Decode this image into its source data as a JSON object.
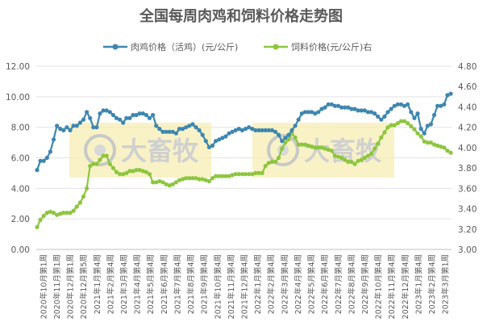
{
  "chart_data": {
    "type": "line",
    "title": "全国每周肉鸡和饲料价格走势图",
    "xlabel": "",
    "ylabel": "",
    "y_left": {
      "min": 0,
      "max": 12,
      "ticks": [
        "0.00",
        "2.00",
        "4.00",
        "6.00",
        "8.00",
        "10.00",
        "12.00"
      ]
    },
    "y_right": {
      "min": 3.0,
      "max": 4.8,
      "ticks": [
        "3.00",
        "3.20",
        "3.40",
        "3.60",
        "3.80",
        "4.00",
        "4.20",
        "4.40",
        "4.60",
        "4.80"
      ]
    },
    "grid": "horizontal",
    "legend": "top",
    "x_labels": [
      "2020年10月第1周",
      "2020年11月第1周",
      "2020年12月第1周",
      "2020年12月第5周",
      "2021年1月第4周",
      "2021年2月第4周",
      "2021年3月第4周",
      "2021年4月第4周",
      "2021年5月第4周",
      "2021年6月第4周",
      "2021年7月第4周",
      "2021年8月第4周",
      "2021年9月第4周",
      "2021年10月第4周",
      "2021年11月第4周",
      "2021年12月第4周",
      "2022年1月第4周",
      "2022年2月第4周",
      "2022年3月第4周",
      "2022年4月第4周",
      "2022年5月第4周",
      "2022年6月第4周",
      "2022年7月第4周",
      "2022年8月第4周",
      "2022年9月第4周",
      "2022年10月第4周",
      "2022年11月第4周",
      "2022年12月第4周",
      "2023年1月第4周",
      "2023年2月第4周",
      "2023年3月第1周"
    ],
    "watermark": "大畜牧",
    "series": [
      {
        "name": "肉鸡价格（活鸡）(元/公斤)",
        "axis": "left",
        "color": "#3d86b0",
        "values": [
          5.2,
          5.8,
          5.8,
          6.0,
          6.4,
          7.2,
          8.1,
          7.9,
          7.8,
          8.0,
          7.8,
          8.1,
          8.1,
          8.3,
          8.5,
          9.0,
          8.6,
          8.0,
          8.0,
          8.9,
          9.1,
          9.1,
          9.0,
          8.8,
          8.6,
          8.5,
          8.3,
          8.6,
          8.6,
          8.8,
          8.8,
          8.9,
          8.9,
          8.8,
          8.6,
          8.8,
          8.1,
          7.9,
          7.7,
          7.7,
          7.7,
          7.7,
          7.6,
          7.9,
          7.9,
          8.0,
          8.1,
          8.2,
          8.0,
          7.8,
          7.5,
          7.1,
          6.7,
          6.8,
          7.1,
          7.2,
          7.3,
          7.4,
          7.6,
          7.7,
          7.8,
          7.9,
          7.8,
          7.9,
          8.0,
          7.9,
          7.8,
          7.8,
          7.8,
          7.8,
          7.8,
          7.8,
          7.7,
          7.5,
          7.1,
          7.3,
          7.5,
          7.8,
          8.1,
          8.5,
          8.9,
          9.0,
          9.0,
          9.0,
          8.9,
          9.0,
          9.2,
          9.3,
          9.5,
          9.5,
          9.4,
          9.4,
          9.3,
          9.3,
          9.3,
          9.2,
          9.2,
          9.1,
          9.1,
          9.1,
          9.0,
          9.0,
          8.9,
          8.7,
          8.5,
          8.7,
          9.0,
          9.2,
          9.4,
          9.5,
          9.5,
          9.4,
          9.5,
          9.0,
          8.6,
          8.9,
          7.9,
          7.6,
          8.1,
          8.2,
          8.8,
          9.4,
          9.4,
          9.5,
          10.1,
          10.2
        ]
      },
      {
        "name": "饲料价格(元/公斤)右",
        "axis": "right",
        "color": "#8cc63e",
        "values": [
          3.22,
          3.29,
          3.33,
          3.36,
          3.37,
          3.36,
          3.34,
          3.35,
          3.36,
          3.36,
          3.36,
          3.38,
          3.42,
          3.46,
          3.52,
          3.6,
          3.82,
          3.84,
          3.84,
          3.88,
          3.92,
          3.92,
          3.84,
          3.8,
          3.76,
          3.74,
          3.74,
          3.75,
          3.77,
          3.77,
          3.78,
          3.78,
          3.77,
          3.76,
          3.74,
          3.66,
          3.66,
          3.67,
          3.66,
          3.64,
          3.63,
          3.64,
          3.66,
          3.68,
          3.69,
          3.7,
          3.7,
          3.7,
          3.7,
          3.69,
          3.69,
          3.68,
          3.67,
          3.7,
          3.72,
          3.72,
          3.72,
          3.72,
          3.72,
          3.73,
          3.74,
          3.74,
          3.74,
          3.74,
          3.74,
          3.74,
          3.75,
          3.75,
          3.75,
          3.82,
          3.85,
          3.86,
          3.86,
          3.9,
          3.99,
          4.05,
          4.08,
          4.14,
          4.1,
          4.03,
          4.03,
          4.03,
          4.02,
          4.01,
          4.0,
          4.0,
          4.0,
          3.99,
          3.98,
          3.97,
          3.92,
          3.91,
          3.9,
          3.88,
          3.86,
          3.86,
          3.84,
          3.87,
          3.88,
          3.9,
          3.92,
          3.94,
          3.99,
          4.04,
          4.1,
          4.15,
          4.2,
          4.22,
          4.22,
          4.24,
          4.26,
          4.26,
          4.24,
          4.21,
          4.18,
          4.14,
          4.11,
          4.06,
          4.05,
          4.05,
          4.03,
          4.02,
          4.01,
          4.0,
          3.97,
          3.95
        ]
      }
    ]
  }
}
